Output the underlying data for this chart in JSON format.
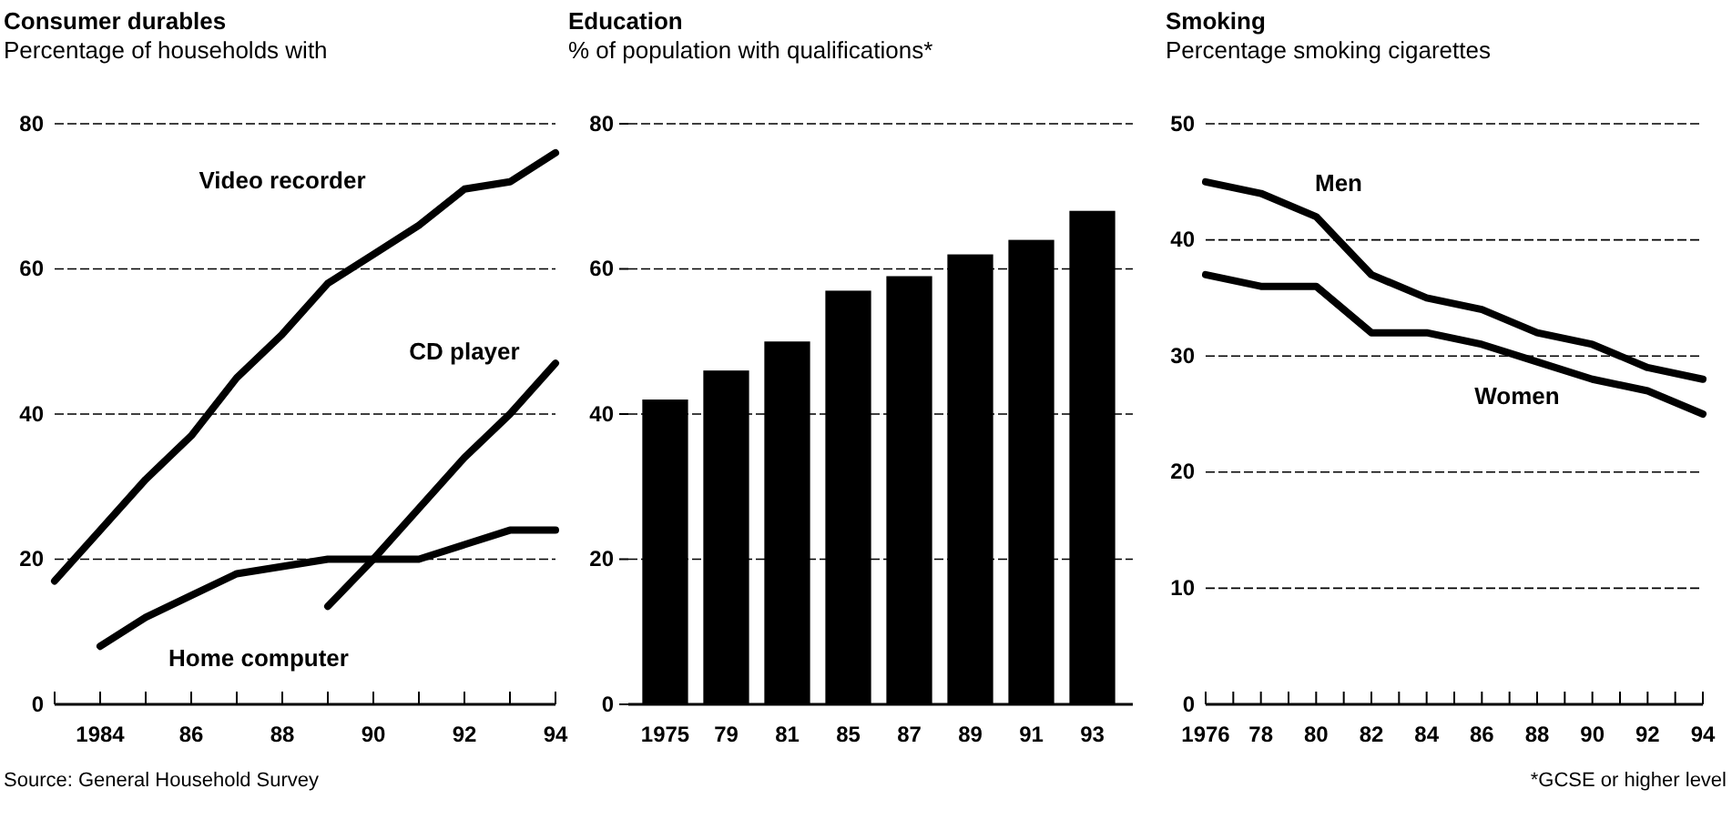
{
  "chart_data": [
    {
      "type": "line",
      "title": "Consumer durables",
      "subtitle": "Percentage of households with",
      "x": [
        1983,
        1984,
        1985,
        1986,
        1987,
        1988,
        1989,
        1990,
        1991,
        1992,
        1993,
        1994
      ],
      "series": [
        {
          "name": "Video recorder",
          "color": "#000000",
          "values": [
            17,
            24,
            31,
            37,
            45,
            51,
            58,
            62,
            66,
            71,
            72,
            76
          ]
        },
        {
          "name": "CD player",
          "color": "#000000",
          "x": [
            1989,
            1990,
            1991,
            1992,
            1993,
            1994
          ],
          "values": [
            13.5,
            20,
            27,
            34,
            40,
            47
          ]
        },
        {
          "name": "Home computer",
          "color": "#000000",
          "x": [
            1984,
            1985,
            1986,
            1987,
            1988,
            1989,
            1990,
            1991,
            1992,
            1993,
            1994
          ],
          "values": [
            8,
            12,
            15,
            18,
            19,
            20,
            20,
            20,
            22,
            24,
            24
          ]
        }
      ],
      "xlim": [
        1983,
        1994
      ],
      "xticks": [
        {
          "value": 1983,
          "label": null
        },
        1984,
        {
          "value": 1985,
          "label": null
        },
        {
          "value": 1986,
          "label": "86"
        },
        {
          "value": 1987,
          "label": null
        },
        {
          "value": 1988,
          "label": "88"
        },
        {
          "value": 1989,
          "label": null
        },
        {
          "value": 1990,
          "label": "90"
        },
        {
          "value": 1991,
          "label": null
        },
        {
          "value": 1992,
          "label": "92"
        },
        {
          "value": 1993,
          "label": null
        },
        {
          "value": 1994,
          "label": "94"
        }
      ],
      "ylim": [
        0,
        80
      ],
      "yticks": [
        0,
        20,
        40,
        60,
        80
      ],
      "grid": "y",
      "line_style": "solid",
      "annotations": [
        "Source: General Household Survey"
      ]
    },
    {
      "type": "bar",
      "title": "Education",
      "subtitle": "% of population with qualifications*",
      "categories": [
        "1975",
        "79",
        "81",
        "85",
        "87",
        "89",
        "91",
        "93"
      ],
      "values": [
        42,
        46,
        50,
        57,
        59,
        62,
        64,
        68
      ],
      "color": "#000000",
      "ylim": [
        0,
        80
      ],
      "yticks": [
        0,
        20,
        40,
        60,
        80
      ],
      "grid": "y"
    },
    {
      "type": "line",
      "title": "Smoking",
      "subtitle": "Percentage smoking cigarettes",
      "x": [
        1976,
        1978,
        1980,
        1982,
        1984,
        1986,
        1988,
        1990,
        1992,
        1994
      ],
      "series": [
        {
          "name": "Men",
          "color": "#000000",
          "values": [
            45,
            44,
            42,
            37,
            35,
            34,
            32,
            31,
            29,
            28
          ]
        },
        {
          "name": "Women",
          "color": "#000000",
          "values": [
            37,
            36,
            36,
            32,
            32,
            31,
            29.5,
            28,
            27,
            25
          ]
        }
      ],
      "xlim": [
        1976,
        1994
      ],
      "xticks": [
        1976,
        {
          "value": 1977,
          "label": null
        },
        {
          "value": 1978,
          "label": "78"
        },
        {
          "value": 1979,
          "label": null
        },
        {
          "value": 1980,
          "label": "80"
        },
        {
          "value": 1981,
          "label": null
        },
        {
          "value": 1982,
          "label": "82"
        },
        {
          "value": 1983,
          "label": null
        },
        {
          "value": 1984,
          "label": "84"
        },
        {
          "value": 1985,
          "label": null
        },
        {
          "value": 1986,
          "label": "86"
        },
        {
          "value": 1987,
          "label": null
        },
        {
          "value": 1988,
          "label": "88"
        },
        {
          "value": 1989,
          "label": null
        },
        {
          "value": 1990,
          "label": "90"
        },
        {
          "value": 1991,
          "label": null
        },
        {
          "value": 1992,
          "label": "92"
        },
        {
          "value": 1993,
          "label": null
        },
        {
          "value": 1994,
          "label": "94"
        }
      ],
      "ylim": [
        0,
        50
      ],
      "yticks": [
        0,
        10,
        20,
        30,
        40,
        50
      ],
      "grid": "y",
      "line_style": "solid",
      "annotations": [
        "*GCSE or higher level"
      ]
    }
  ]
}
